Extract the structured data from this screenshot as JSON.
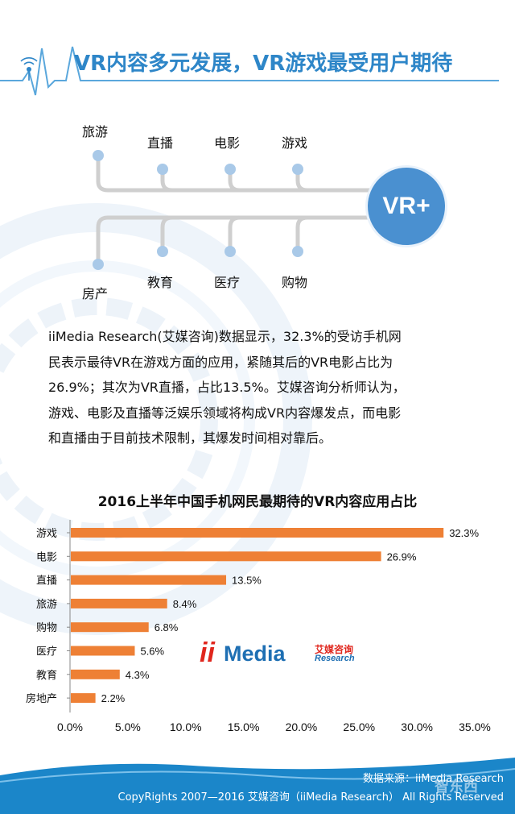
{
  "header": {
    "title": "VR内容多元发展，VR游戏最受用户期待"
  },
  "diagram": {
    "hub_label": "VR+",
    "top_nodes": [
      "旅游",
      "直播",
      "电影",
      "游戏"
    ],
    "bottom_nodes": [
      "房产",
      "教育",
      "医疗",
      "购物"
    ]
  },
  "paragraph": {
    "lines": [
      "iiMedia  Research(艾媒咨询)数据显示，32.3%的受访手机网",
      "民表示最待VR在游戏方面的应用，紧随其后的VR电影占比为",
      "26.9%；其次为VR直播，占比13.5%。艾媒咨询分析师认为，",
      "游戏、电影及直播等泛娱乐领域将构成VR内容爆发点，而电影",
      "和直播由于目前技术限制，其爆发时间相对靠后。"
    ]
  },
  "chart_data": {
    "type": "bar",
    "orientation": "horizontal",
    "title": "2016上半年中国手机网民最期待的VR内容应用占比",
    "categories": [
      "游戏",
      "电影",
      "直播",
      "旅游",
      "购物",
      "医疗",
      "教育",
      "房地产"
    ],
    "values": [
      32.3,
      26.9,
      13.5,
      8.4,
      6.8,
      5.6,
      4.3,
      2.2
    ],
    "value_labels": [
      "32.3%",
      "26.9%",
      "13.5%",
      "8.4%",
      "6.8%",
      "5.6%",
      "4.3%",
      "2.2%"
    ],
    "x_ticks": [
      "0.0%",
      "5.0%",
      "10.0%",
      "15.0%",
      "20.0%",
      "25.0%",
      "30.0%",
      "35.0%"
    ],
    "xlim": [
      0,
      35
    ],
    "bar_color": "#ee8035",
    "xlabel": "",
    "ylabel": "",
    "grid": false
  },
  "logo": {
    "ii": "ii",
    "media": "Media",
    "cn": "艾媒咨询",
    "en": "Research"
  },
  "footer": {
    "source": "数据来源：iiMedia Research",
    "copyright": "CopyRights 2007—2016 艾媒咨询（iiMedia Research） All Rights Reserved",
    "watermark": "智东西"
  },
  "colors": {
    "accent": "#2e86c8",
    "hub": "#4a90d0",
    "node": "#a9c9e8",
    "footer": "#1b86c9"
  }
}
